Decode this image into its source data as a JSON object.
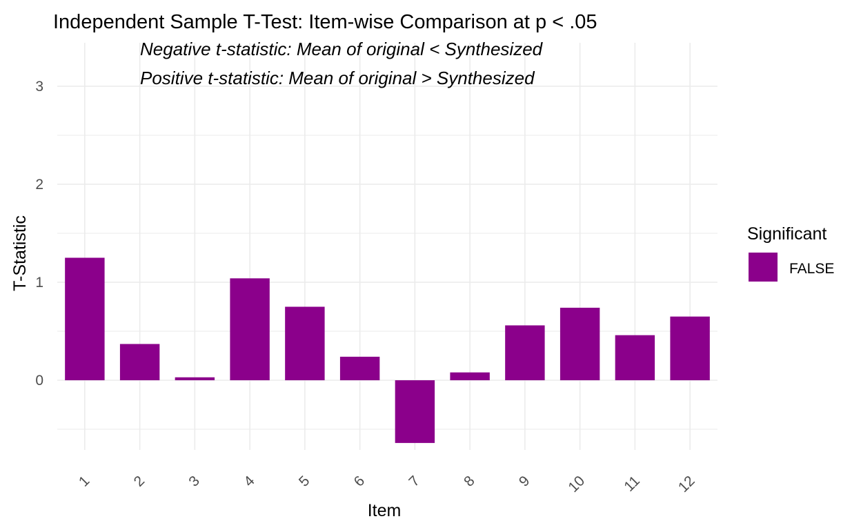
{
  "chart_data": {
    "type": "bar",
    "title": "Independent Sample T-Test: Item-wise Comparison at p < .05",
    "annotations": [
      "Negative t-statistic: Mean of original < Synthesized",
      "Positive t-statistic: Mean of original > Synthesized"
    ],
    "xlabel": "Item",
    "ylabel": "T-Statistic",
    "categories": [
      "1",
      "2",
      "3",
      "4",
      "5",
      "6",
      "7",
      "8",
      "9",
      "10",
      "11",
      "12"
    ],
    "values": [
      1.25,
      0.37,
      0.03,
      1.04,
      0.75,
      0.24,
      -0.64,
      0.08,
      0.56,
      0.74,
      0.46,
      0.65
    ],
    "y_ticks": [
      "0",
      "1",
      "2",
      "3"
    ],
    "ylim": [
      -0.75,
      3.45
    ],
    "grid": true,
    "legend": {
      "title": "Significant",
      "entries": [
        {
          "label": "FALSE",
          "color": "#8B008B"
        }
      ],
      "position": "right"
    },
    "colors": {
      "bar": "#8B008B",
      "grid": "#ebebeb",
      "tick_text": "#4d4d4d",
      "text": "#000000"
    }
  }
}
